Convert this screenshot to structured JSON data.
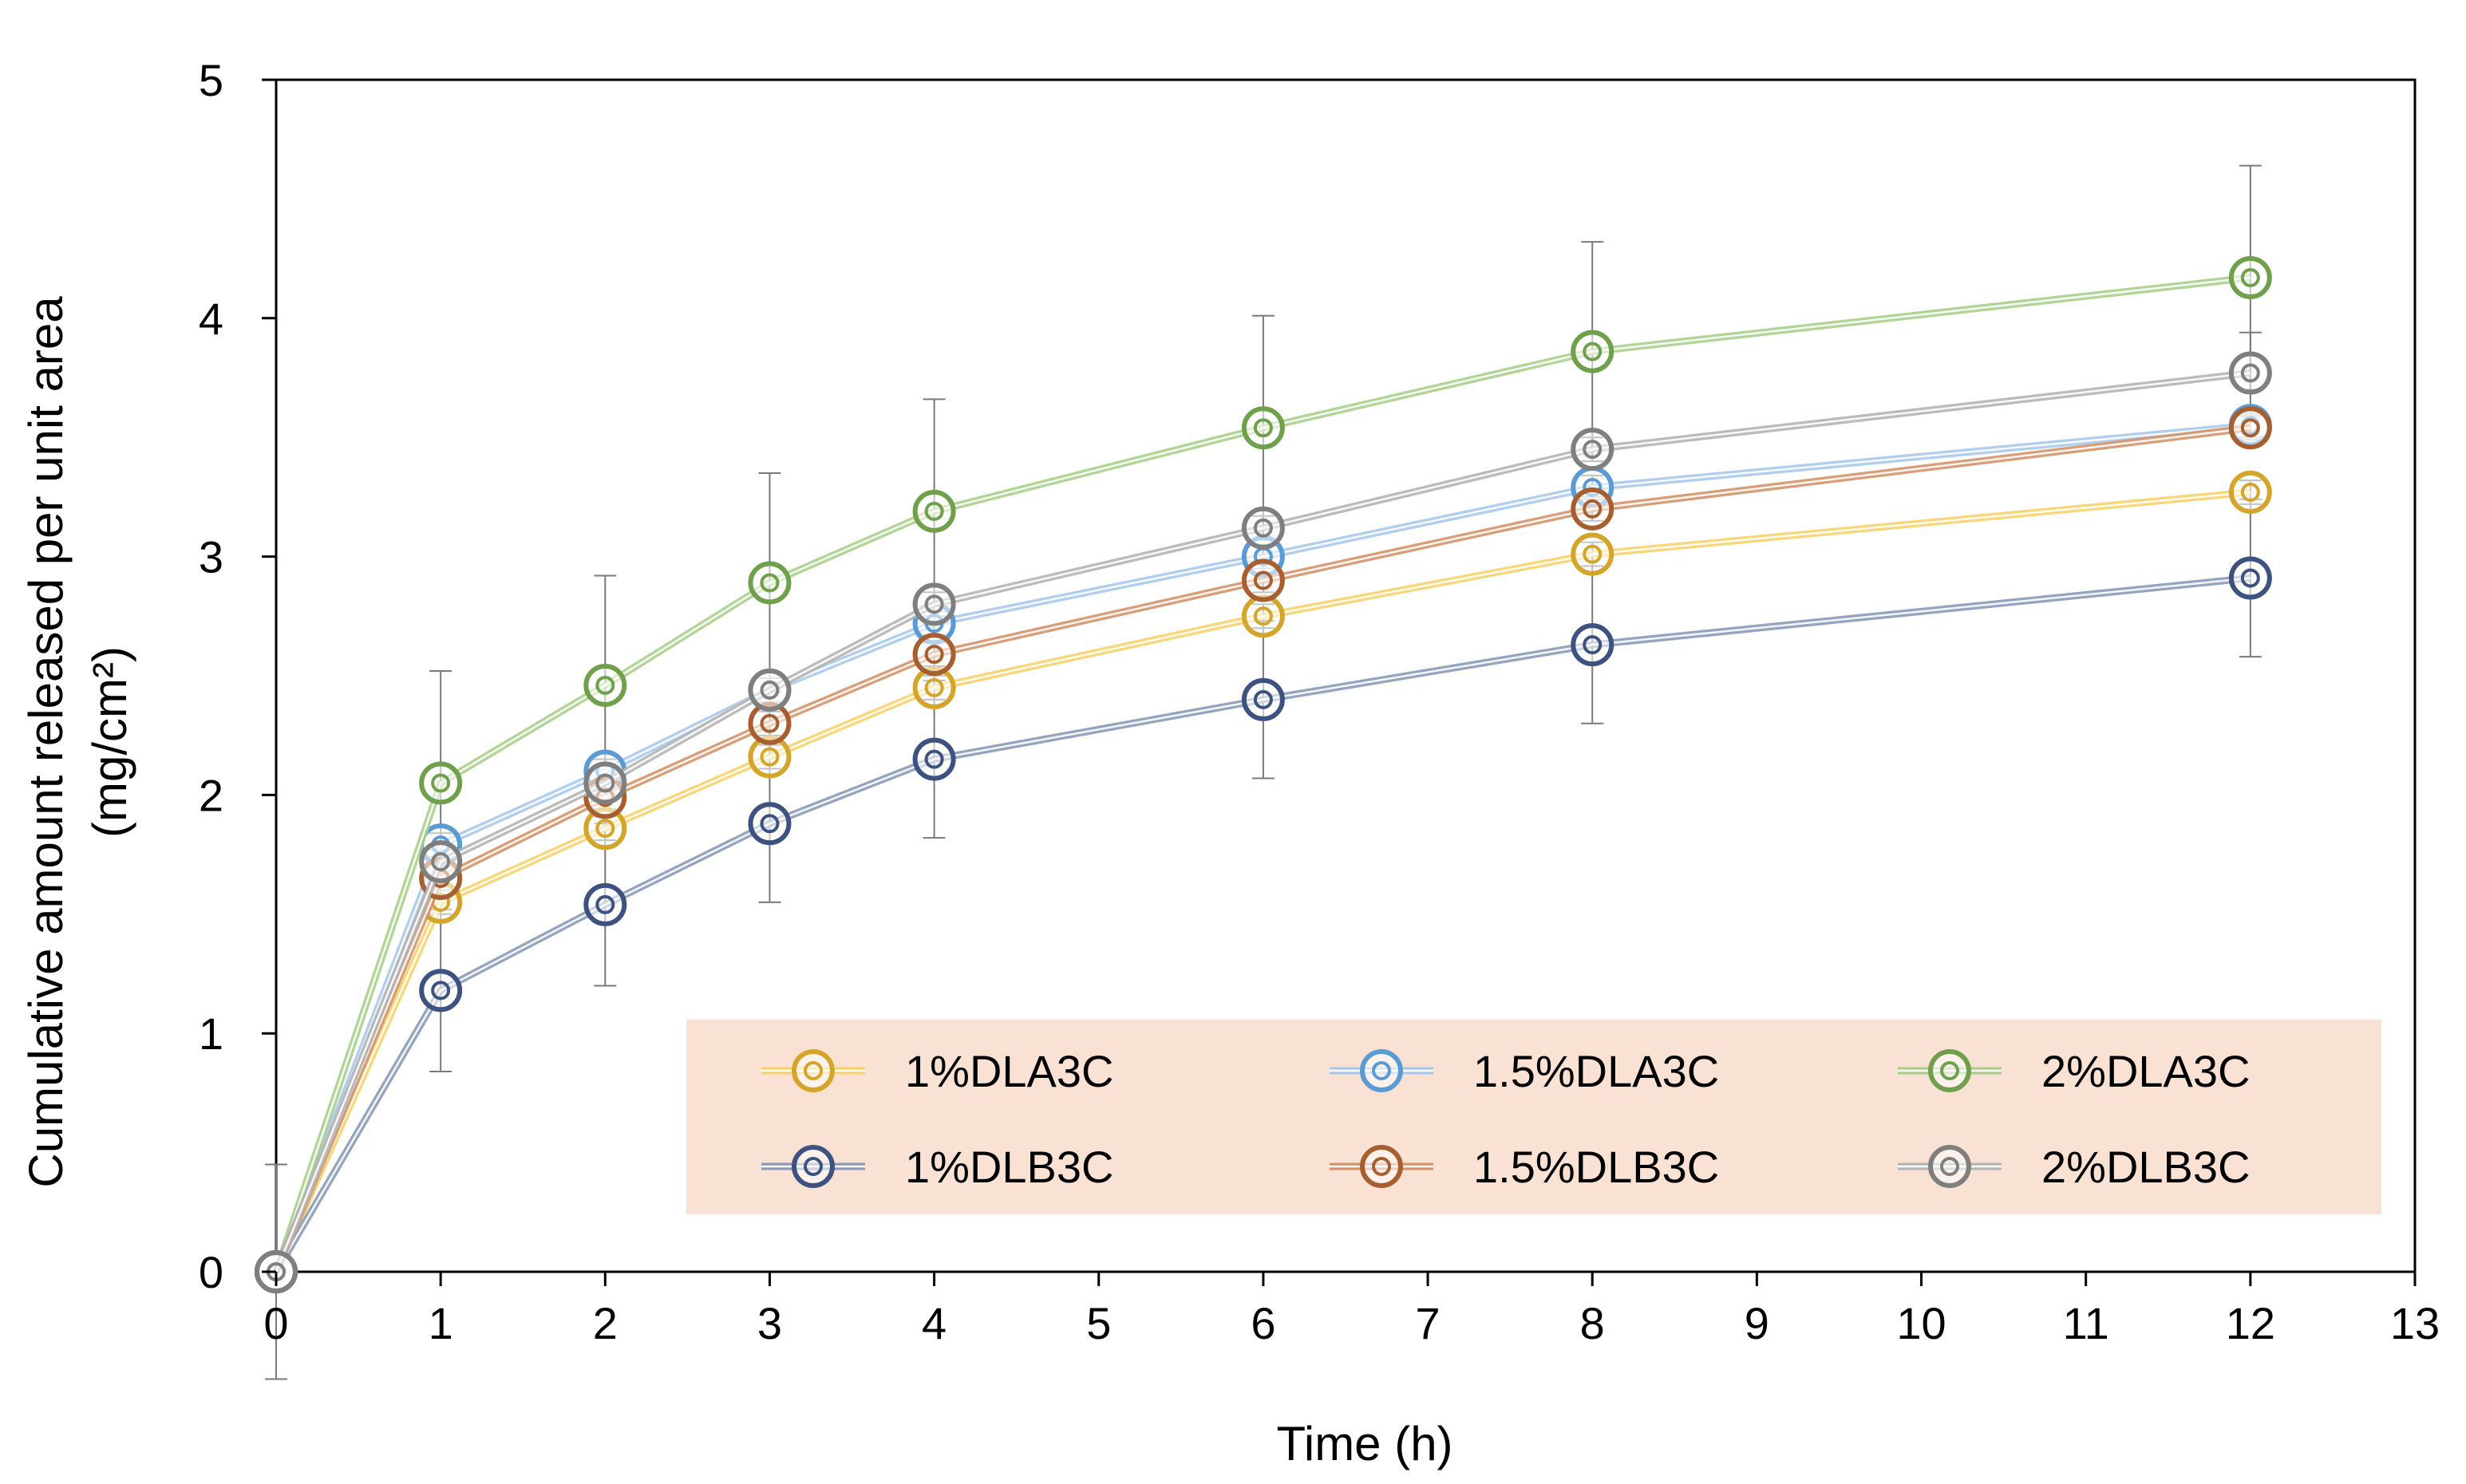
{
  "chart_data": {
    "type": "line",
    "title": "",
    "xlabel": "Time (h)",
    "ylabel_line1": "Cumulative amount released per unit area",
    "ylabel_line2": "(mg/cm²)",
    "xlim": [
      0,
      13
    ],
    "ylim": [
      0,
      5
    ],
    "xticks": [
      "0",
      "1",
      "2",
      "3",
      "4",
      "5",
      "6",
      "7",
      "8",
      "9",
      "10",
      "11",
      "12",
      "13"
    ],
    "yticks": [
      "0",
      "1",
      "2",
      "3",
      "4",
      "5"
    ],
    "grid": false,
    "legend_position": "bottom-right",
    "legend_background": "#f9e2d3",
    "x": [
      0,
      1,
      2,
      3,
      4,
      6,
      8,
      12
    ],
    "series": [
      {
        "name": "1%DLA3C",
        "color": "#d4a52a",
        "line_color": "#f7d26c",
        "values": [
          0,
          1.55,
          1.86,
          2.16,
          2.45,
          2.75,
          3.01,
          3.27
        ],
        "errors": [
          0,
          0.05,
          0.05,
          0.05,
          0.05,
          0.05,
          0.05,
          0.05
        ]
      },
      {
        "name": "1.5%DLA3C",
        "color": "#5b9bd5",
        "line_color": "#a9c9ec",
        "values": [
          0,
          1.79,
          2.1,
          2.44,
          2.72,
          3.0,
          3.29,
          3.55
        ],
        "errors": [
          0,
          0.05,
          0.05,
          0.05,
          0.05,
          0.05,
          0.05,
          0.05
        ]
      },
      {
        "name": "2%DLA3C",
        "color": "#70a04c",
        "line_color": "#a8cf8c",
        "values": [
          0,
          2.05,
          2.46,
          2.89,
          3.19,
          3.54,
          3.86,
          4.17
        ],
        "errors": [
          0.02,
          0.47,
          0.46,
          0.46,
          0.47,
          0.47,
          0.46,
          0.47
        ]
      },
      {
        "name": "1%DLB3C",
        "color": "#3d5280",
        "line_color": "#8a9bb8",
        "values": [
          0,
          1.18,
          1.54,
          1.88,
          2.15,
          2.4,
          2.63,
          2.91
        ],
        "errors": [
          0.45,
          0.34,
          0.34,
          0.33,
          0.33,
          0.33,
          0.33,
          0.33
        ]
      },
      {
        "name": "1.5%DLB3C",
        "color": "#a85f2f",
        "line_color": "#d4936a",
        "values": [
          0,
          1.65,
          1.99,
          2.3,
          2.59,
          2.9,
          3.2,
          3.54
        ],
        "errors": [
          0,
          0.05,
          0.05,
          0.05,
          0.05,
          0.05,
          0.05,
          0.05
        ]
      },
      {
        "name": "2%DLB3C",
        "color": "#7f7f7f",
        "line_color": "#b4b4b4",
        "values": [
          0,
          1.72,
          2.05,
          2.44,
          2.8,
          3.12,
          3.45,
          3.77
        ],
        "errors": [
          0,
          0.05,
          0.05,
          0.05,
          0.05,
          0.05,
          0.05,
          0.17
        ]
      }
    ]
  }
}
